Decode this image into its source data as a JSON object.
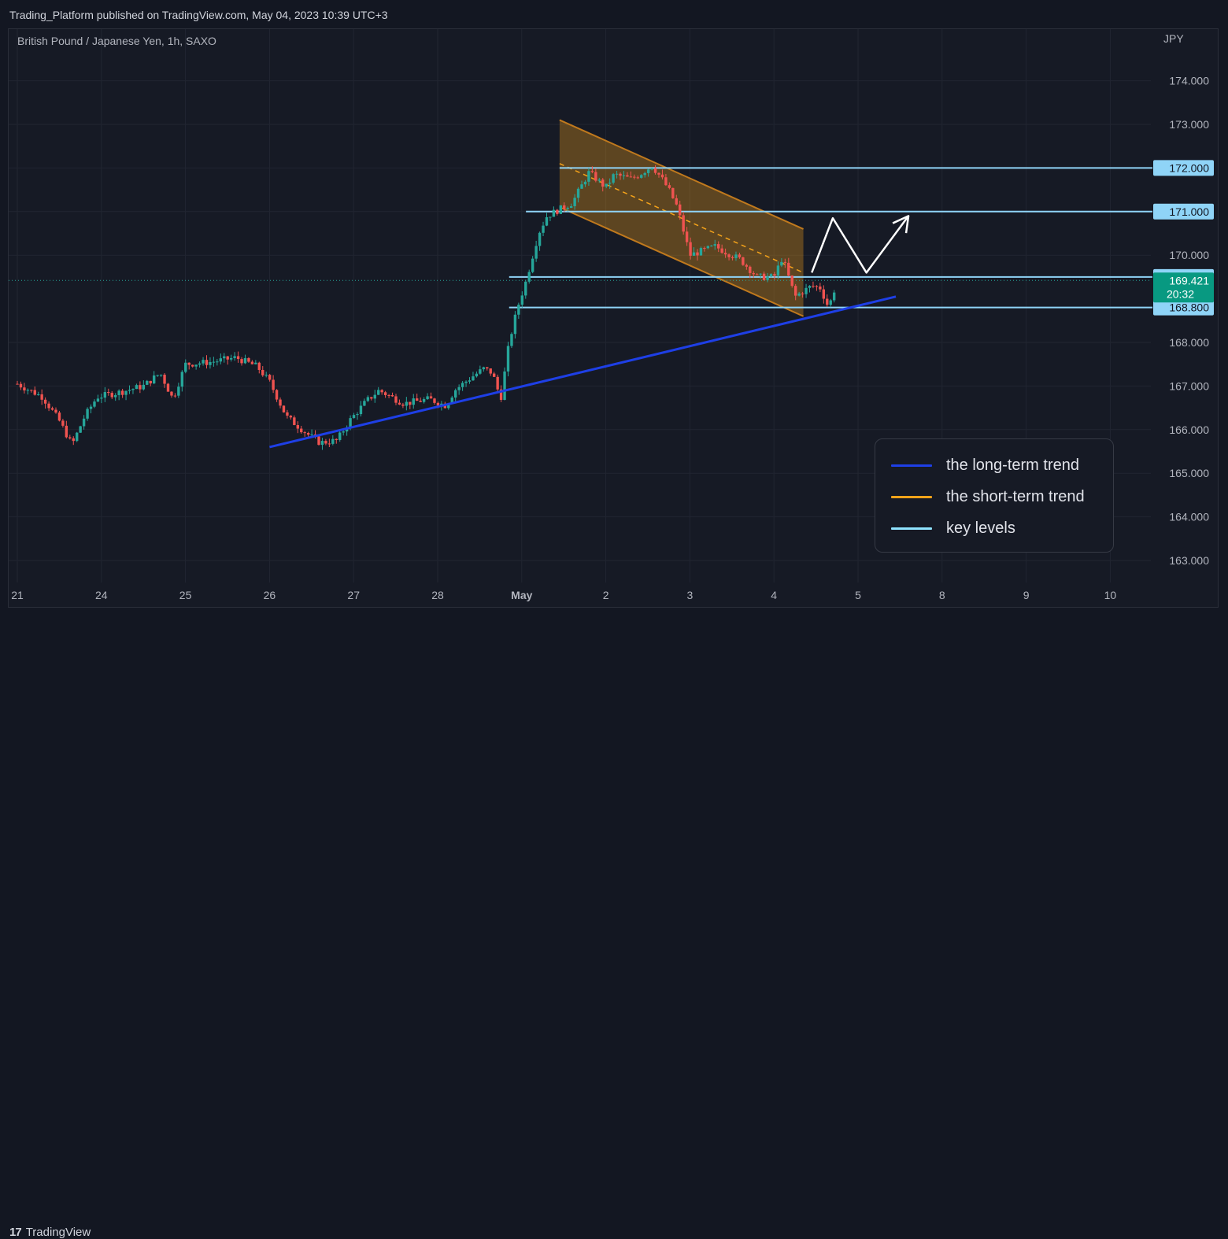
{
  "header": {
    "published": "Trading_Platform published on TradingView.com, May 04, 2023 10:39 UTC+3",
    "symbol": "British Pound / Japanese Yen, 1h, SAXO",
    "currency": "JPY"
  },
  "footer": {
    "brand": "TradingView",
    "brand_mark": "17"
  },
  "legend": [
    {
      "label": "the long-term trend",
      "color": "#1e3fe6"
    },
    {
      "label": "the short-term trend",
      "color": "#f5a31a"
    },
    {
      "label": "key levels",
      "color": "#8fe3ff"
    }
  ],
  "chart_data": {
    "type": "candlestick",
    "symbol": "GBPJPY",
    "timeframe": "1h",
    "y_ticks": [
      "174.000",
      "173.000",
      "172.000",
      "171.000",
      "170.000",
      "168.000",
      "167.000",
      "166.000",
      "165.000",
      "164.000",
      "163.000"
    ],
    "ylim": [
      162.6,
      174.9
    ],
    "x_ticks": [
      "21",
      "24",
      "25",
      "26",
      "27",
      "28",
      "May",
      "2",
      "3",
      "4",
      "5",
      "8",
      "9",
      "10"
    ],
    "x_tick_index": [
      0,
      1,
      2,
      3,
      4,
      5,
      6,
      7,
      8,
      9,
      10,
      11,
      12,
      13
    ],
    "key_levels": [
      {
        "label": "172.000",
        "value": 172.0
      },
      {
        "label": "171.000",
        "value": 171.0
      },
      {
        "label": "169.500",
        "value": 169.5
      },
      {
        "label": "168.800",
        "value": 168.8
      }
    ],
    "current_price": {
      "label": "169.421",
      "countdown": "20:32",
      "value": 169.421
    },
    "path": [
      [
        0,
        167.05
      ],
      [
        0.3,
        166.75
      ],
      [
        0.5,
        166.2
      ],
      [
        0.65,
        165.65
      ],
      [
        0.8,
        166.3
      ],
      [
        0.95,
        166.75
      ],
      [
        1.2,
        166.85
      ],
      [
        1.5,
        167.0
      ],
      [
        1.7,
        167.3
      ],
      [
        1.85,
        166.7
      ],
      [
        2.0,
        167.5
      ],
      [
        2.3,
        167.55
      ],
      [
        2.6,
        167.65
      ],
      [
        2.85,
        167.45
      ],
      [
        3.0,
        167.1
      ],
      [
        3.2,
        166.3
      ],
      [
        3.45,
        165.9
      ],
      [
        3.6,
        165.7
      ],
      [
        3.8,
        165.75
      ],
      [
        3.95,
        166.2
      ],
      [
        4.15,
        166.65
      ],
      [
        4.3,
        166.9
      ],
      [
        4.6,
        166.6
      ],
      [
        4.9,
        166.7
      ],
      [
        5.1,
        166.55
      ],
      [
        5.2,
        166.9
      ],
      [
        5.4,
        167.2
      ],
      [
        5.55,
        167.4
      ],
      [
        5.65,
        167.3
      ],
      [
        5.75,
        166.7
      ],
      [
        5.85,
        168.0
      ],
      [
        5.95,
        168.8
      ],
      [
        6.05,
        169.4
      ],
      [
        6.2,
        170.5
      ],
      [
        6.3,
        170.9
      ],
      [
        6.45,
        171.05
      ],
      [
        6.6,
        171.2
      ],
      [
        6.8,
        171.9
      ],
      [
        7.0,
        171.55
      ],
      [
        7.1,
        171.85
      ],
      [
        7.3,
        171.75
      ],
      [
        7.4,
        171.85
      ],
      [
        7.55,
        172.05
      ],
      [
        7.65,
        171.8
      ],
      [
        7.75,
        171.5
      ],
      [
        7.85,
        171.1
      ],
      [
        8.0,
        170.0
      ],
      [
        8.3,
        170.2
      ],
      [
        8.6,
        169.9
      ],
      [
        8.8,
        169.5
      ],
      [
        9.0,
        169.5
      ],
      [
        9.1,
        169.95
      ],
      [
        9.25,
        169.05
      ],
      [
        9.45,
        169.3
      ],
      [
        9.55,
        169.25
      ],
      [
        9.65,
        168.8
      ],
      [
        9.75,
        169.4
      ]
    ],
    "channel": {
      "upper": [
        [
          6.45,
          173.1
        ],
        [
          9.35,
          170.6
        ]
      ],
      "lower": [
        [
          6.45,
          171.1
        ],
        [
          9.35,
          168.6
        ]
      ],
      "mid": [
        [
          6.45,
          172.1
        ],
        [
          9.35,
          169.6
        ]
      ]
    },
    "long_term_trend": [
      [
        3.0,
        165.6
      ],
      [
        10.45,
        169.05
      ]
    ],
    "projection": [
      [
        9.45,
        169.6
      ],
      [
        9.7,
        170.85
      ],
      [
        10.1,
        169.6
      ],
      [
        10.6,
        170.9
      ]
    ],
    "level_start": {
      "172.000": 6.45,
      "171.000": 6.05,
      "169.500": 5.85,
      "168.800": 5.85
    }
  }
}
